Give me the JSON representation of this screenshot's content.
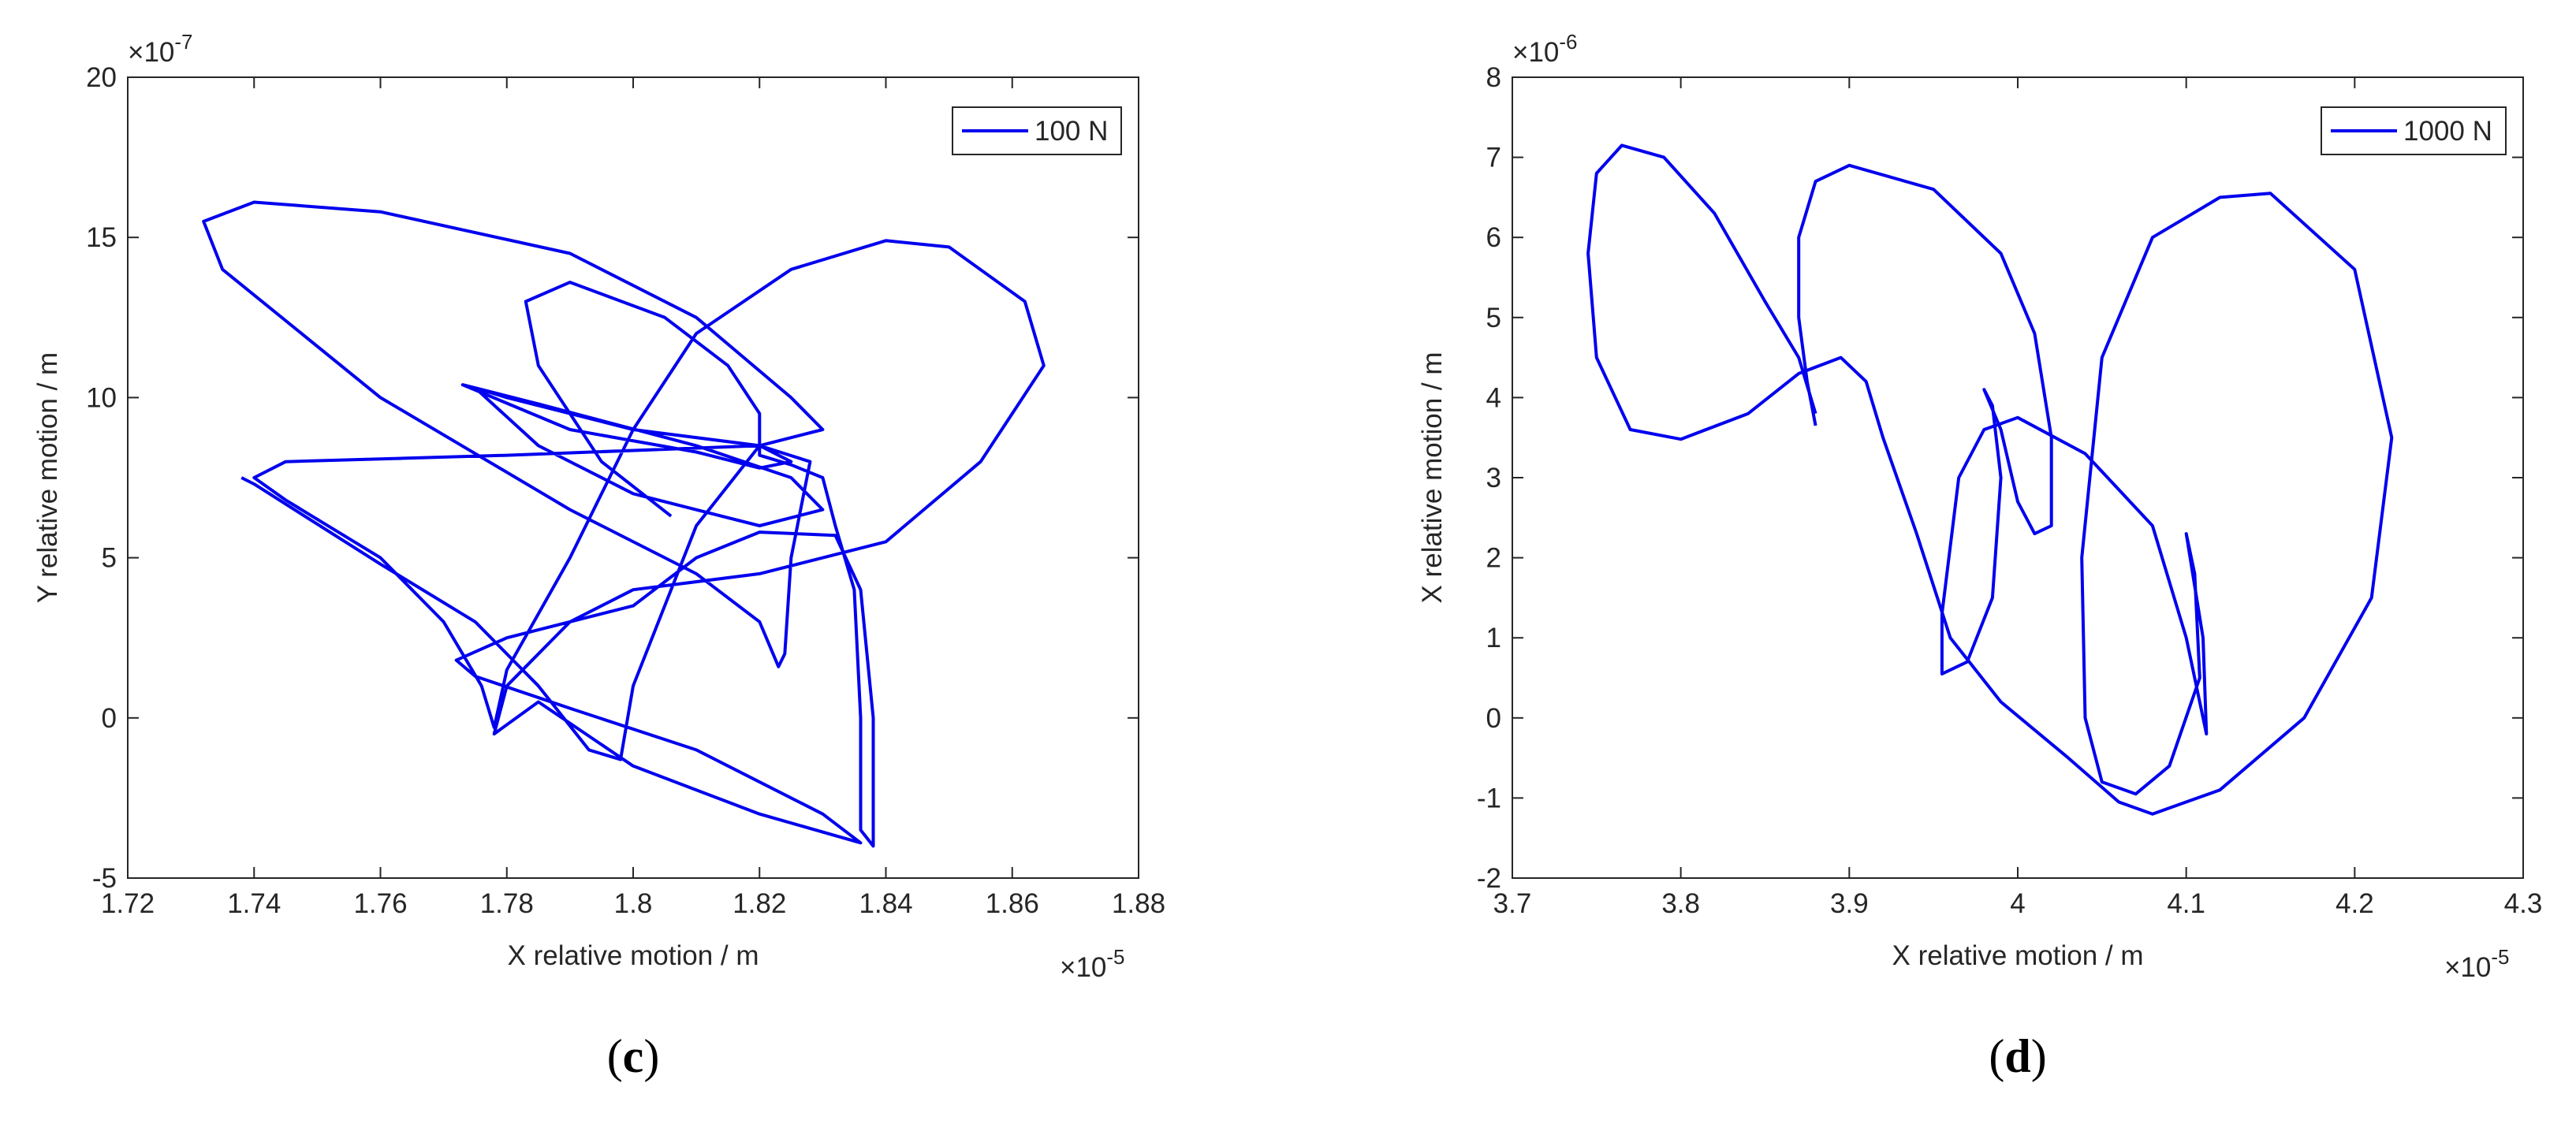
{
  "chart_data": [
    {
      "type": "line",
      "xlabel": "X relative motion / m",
      "ylabel": "Y relative motion / m",
      "x_multiplier": {
        "base": "×10",
        "power": "-5"
      },
      "y_multiplier": {
        "base": "×10",
        "power": "-7"
      },
      "xlim": [
        1.72,
        1.88
      ],
      "xticks": [
        1.72,
        1.74,
        1.76,
        1.78,
        1.8,
        1.82,
        1.84,
        1.86,
        1.88
      ],
      "ylim": [
        -5,
        20
      ],
      "yticks": [
        -5,
        0,
        5,
        10,
        15,
        20
      ],
      "legend": "northeast",
      "caption": [
        "(",
        "c",
        ")"
      ],
      "x": [
        1.806,
        1.795,
        1.785,
        1.783,
        1.79,
        1.805,
        1.815,
        1.82,
        1.82,
        1.825,
        1.83,
        1.832,
        1.835,
        1.836,
        1.836,
        1.838,
        1.838,
        1.836,
        1.832,
        1.82,
        1.81,
        1.8,
        1.78,
        1.772,
        1.775,
        1.79,
        1.81,
        1.83,
        1.836,
        1.82,
        1.8,
        1.785,
        1.778,
        1.78,
        1.79,
        1.8,
        1.82,
        1.84,
        1.855,
        1.865,
        1.862,
        1.85,
        1.84,
        1.825,
        1.81,
        1.8,
        1.79,
        1.78,
        1.778,
        1.776,
        1.77,
        1.76,
        1.745,
        1.74,
        1.745,
        1.78,
        1.82,
        1.825,
        1.82,
        1.81,
        1.79,
        1.773,
        1.785,
        1.81,
        1.825,
        1.83,
        1.82,
        1.8,
        1.785,
        1.775,
        1.78,
        1.8,
        1.82,
        1.828,
        1.825,
        1.824,
        1.823,
        1.82,
        1.81,
        1.79,
        1.76,
        1.735,
        1.732,
        1.74,
        1.76,
        1.79,
        1.81,
        1.825,
        1.83,
        1.82,
        1.81,
        1.8,
        1.798,
        1.793,
        1.785,
        1.775,
        1.76,
        1.74,
        1.738
      ],
      "series": [
        {
          "name": "100 N",
          "color": "#0000ee",
          "values": [
            6.3,
            8,
            11,
            13,
            13.6,
            12.5,
            11,
            9.5,
            8.2,
            7.9,
            7.5,
            6,
            4,
            0,
            -3.5,
            -4,
            0,
            4,
            5.7,
            5.8,
            5,
            3.5,
            2.5,
            1.8,
            1.3,
            0.3,
            -1,
            -3,
            -3.9,
            -3,
            -1.5,
            0.5,
            -0.5,
            1,
            3,
            4,
            4.5,
            5.5,
            8,
            11,
            13,
            14.7,
            14.9,
            14,
            12,
            9,
            5,
            1.5,
            -0.3,
            1,
            3,
            5,
            6.8,
            7.5,
            8,
            8.2,
            8.5,
            8,
            7.8,
            8.3,
            9,
            10.4,
            9.8,
            8.5,
            7.5,
            6.5,
            6,
            7,
            8.5,
            10.3,
            10,
            9,
            8.5,
            8,
            5,
            2,
            1.6,
            3,
            4.5,
            6.5,
            10,
            14,
            15.5,
            16.1,
            15.8,
            14.5,
            12.5,
            10,
            9,
            8.5,
            6,
            1,
            -1.3,
            -1,
            1,
            3,
            4.8,
            7.3,
            7.5
          ]
        }
      ]
    },
    {
      "type": "line",
      "xlabel": "X relative motion / m",
      "ylabel": "X relative motion / m",
      "x_multiplier": {
        "base": "×10",
        "power": "-5"
      },
      "y_multiplier": {
        "base": "×10",
        "power": "-6"
      },
      "xlim": [
        3.7,
        4.3
      ],
      "xticks": [
        3.7,
        3.8,
        3.9,
        4,
        4.1,
        4.2,
        4.3
      ],
      "ylim": [
        -2,
        8
      ],
      "yticks": [
        -2,
        -1,
        0,
        1,
        2,
        3,
        4,
        5,
        6,
        7,
        8
      ],
      "legend": "northeast",
      "caption": [
        "(",
        "d",
        ")"
      ],
      "x": [
        3.88,
        3.875,
        3.87,
        3.87,
        3.88,
        3.9,
        3.95,
        3.99,
        4.01,
        4.02,
        4.02,
        4.01,
        4.0,
        3.99,
        3.98,
        3.985,
        3.99,
        3.985,
        3.97,
        3.955,
        3.955,
        3.965,
        3.98,
        4.0,
        4.04,
        4.08,
        4.1,
        4.112,
        4.11,
        4.1,
        4.105,
        4.108,
        4.09,
        4.07,
        4.05,
        4.04,
        4.038,
        4.05,
        4.08,
        4.12,
        4.15,
        4.2,
        4.222,
        4.21,
        4.17,
        4.12,
        4.08,
        4.06,
        4.03,
        3.99,
        3.96,
        3.94,
        3.92,
        3.91,
        3.895,
        3.87,
        3.84,
        3.8,
        3.77,
        3.75,
        3.745,
        3.75,
        3.765,
        3.79,
        3.82,
        3.85,
        3.87,
        3.88
      ],
      "series": [
        {
          "name": "1000 N",
          "color": "#0000ee",
          "values": [
            3.65,
            4.2,
            5,
            6,
            6.7,
            6.9,
            6.6,
            5.8,
            4.8,
            3.5,
            2.4,
            2.3,
            2.7,
            3.6,
            4.1,
            3.9,
            3.0,
            1.5,
            0.7,
            0.55,
            1.3,
            3,
            3.6,
            3.75,
            3.3,
            2.4,
            1,
            -0.2,
            1,
            2.3,
            1.8,
            0.5,
            -0.6,
            -0.95,
            -0.8,
            0,
            2,
            4.5,
            6,
            6.5,
            6.55,
            5.6,
            3.5,
            1.5,
            0,
            -0.9,
            -1.2,
            -1.05,
            -0.5,
            0.2,
            1,
            2.3,
            3.5,
            4.2,
            4.5,
            4.3,
            3.8,
            3.48,
            3.6,
            4.5,
            5.8,
            6.8,
            7.15,
            7,
            6.3,
            5.2,
            4.5,
            3.8
          ]
        }
      ]
    }
  ]
}
